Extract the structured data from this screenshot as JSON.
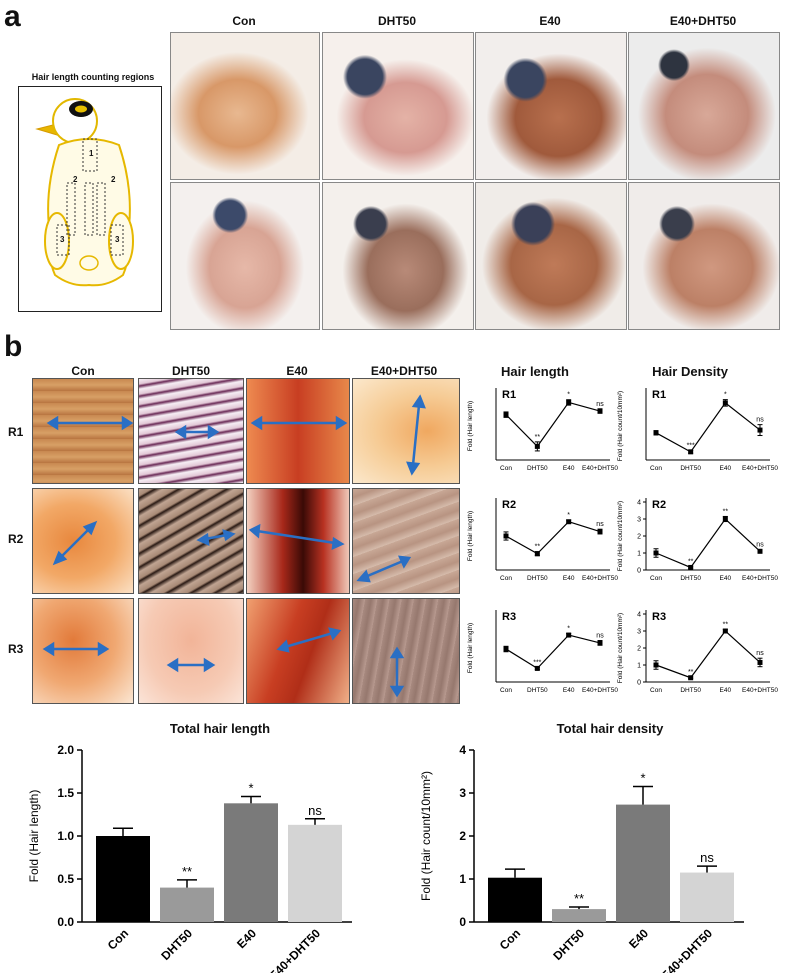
{
  "panel_a": {
    "letter": "a",
    "columns": [
      "Con",
      "DHT50",
      "E40",
      "E40+DHT50"
    ],
    "regions_title": "Hair length counting regions",
    "region_labels": [
      "1",
      "2",
      "2",
      "3",
      "3"
    ]
  },
  "panel_b": {
    "letter": "b",
    "columns": [
      "Con",
      "DHT50",
      "E40",
      "E40+DHT50"
    ],
    "rows": [
      "R1",
      "R2",
      "R3"
    ],
    "length_title": "Hair length",
    "density_title": "Hair Density"
  },
  "colors": {
    "con": "#000000",
    "dht": "#9a9a9a",
    "e40": "#7a7a7a",
    "combo": "#d4d4d4",
    "arrow": "#2a6fc4"
  },
  "chart_data": [
    {
      "id": "length_R1",
      "type": "line",
      "panel": "R1",
      "ylabel": "Fold (Hair length)",
      "categories": [
        "Con",
        "DHT50",
        "E40",
        "E40+DHT50"
      ],
      "values": [
        1.0,
        0.3,
        1.27,
        1.08
      ],
      "errors": [
        0.06,
        0.1,
        0.06,
        0.05
      ],
      "sig": [
        "",
        "**",
        "*",
        "ns"
      ],
      "ylim": [
        0,
        1.5
      ],
      "ticks": []
    },
    {
      "id": "density_R1",
      "type": "line",
      "panel": "R1",
      "ylabel": "Fold (Hair count/10mm²)",
      "categories": [
        "Con",
        "DHT50",
        "E40",
        "E40+DHT50"
      ],
      "values": [
        1.0,
        0.3,
        2.1,
        1.1
      ],
      "errors": [
        0.08,
        0.05,
        0.12,
        0.2
      ],
      "sig": [
        "",
        "***",
        "*",
        "ns"
      ],
      "ylim": [
        0,
        2.5
      ],
      "ticks": []
    },
    {
      "id": "length_R2",
      "type": "line",
      "panel": "R2",
      "ylabel": "Fold (Hair length)",
      "categories": [
        "Con",
        "DHT50",
        "E40",
        "E40+DHT50"
      ],
      "values": [
        1.0,
        0.48,
        1.42,
        1.13
      ],
      "errors": [
        0.12,
        0.06,
        0.05,
        0.07
      ],
      "sig": [
        "",
        "**",
        "*",
        "ns"
      ],
      "ylim": [
        0,
        2.0
      ],
      "ticks": []
    },
    {
      "id": "density_R2",
      "type": "line",
      "panel": "R2",
      "ylabel": "Fold (Hair count/10mm²)",
      "categories": [
        "Con",
        "DHT50",
        "E40",
        "E40+DHT50"
      ],
      "values": [
        1.0,
        0.15,
        3.0,
        1.1
      ],
      "errors": [
        0.25,
        0.05,
        0.15,
        0.1
      ],
      "sig": [
        "",
        "**",
        "**",
        "ns"
      ],
      "ylim": [
        0,
        4
      ],
      "ticks": [
        "0",
        "1",
        "2",
        "3",
        "4"
      ]
    },
    {
      "id": "length_R3",
      "type": "line",
      "panel": "R3",
      "ylabel": "Fold (Hair length)",
      "categories": [
        "Con",
        "DHT50",
        "E40",
        "E40+DHT50"
      ],
      "values": [
        0.97,
        0.4,
        1.38,
        1.15
      ],
      "errors": [
        0.08,
        0.03,
        0.05,
        0.07
      ],
      "sig": [
        "",
        "***",
        "*",
        "ns"
      ],
      "ylim": [
        0,
        2.0
      ],
      "ticks": []
    },
    {
      "id": "density_R3",
      "type": "line",
      "panel": "R3",
      "ylabel": "Fold (Hair count/10mm²)",
      "categories": [
        "Con",
        "DHT50",
        "E40",
        "E40+DHT50"
      ],
      "values": [
        1.0,
        0.25,
        3.0,
        1.15
      ],
      "errors": [
        0.25,
        0.05,
        0.1,
        0.25
      ],
      "sig": [
        "",
        "**",
        "**",
        "ns"
      ],
      "ylim": [
        0,
        4
      ],
      "ticks": [
        "0",
        "1",
        "2",
        "3",
        "4"
      ]
    },
    {
      "id": "total_length",
      "type": "bar",
      "title": "Total hair length",
      "ylabel": "Fold (Hair length)",
      "categories": [
        "Con",
        "DHT50",
        "E40",
        "E40+DHT50"
      ],
      "values": [
        1.0,
        0.4,
        1.38,
        1.13
      ],
      "errors": [
        0.09,
        0.09,
        0.08,
        0.07
      ],
      "sig": [
        "",
        "**",
        "*",
        "ns"
      ],
      "ylim": [
        0,
        2.0
      ],
      "ticks": [
        "0.0",
        "0.5",
        "1.0",
        "1.5",
        "2.0"
      ]
    },
    {
      "id": "total_density",
      "type": "bar",
      "title": "Total hair density",
      "ylabel": "Fold (Hair count/10mm²)",
      "categories": [
        "Con",
        "DHT50",
        "E40",
        "E40+DHT50"
      ],
      "values": [
        1.03,
        0.3,
        2.73,
        1.15
      ],
      "errors": [
        0.2,
        0.05,
        0.42,
        0.15
      ],
      "sig": [
        "",
        "**",
        "*",
        "ns"
      ],
      "ylim": [
        0,
        4
      ],
      "ticks": [
        "0",
        "1",
        "2",
        "3",
        "4"
      ]
    }
  ]
}
